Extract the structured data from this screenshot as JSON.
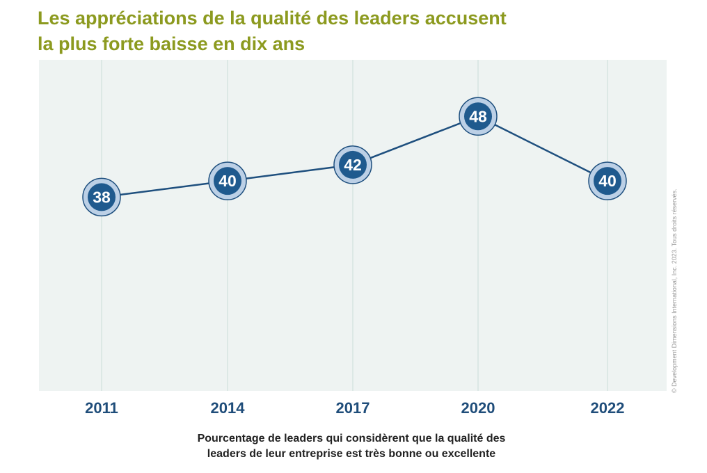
{
  "title": {
    "line1": "Les appréciations de la qualité des leaders accusent",
    "line2": "la plus forte baisse en dix ans"
  },
  "caption": {
    "line1": "Pourcentage de leaders qui considèrent que la qualité des",
    "line2": "leaders de leur entreprise est très bonne ou excellente"
  },
  "copyright": "© Development Dimensions International, Inc. 2023. Tous droits réservés.",
  "chart_data": {
    "type": "line",
    "x": [
      "2011",
      "2014",
      "2017",
      "2020",
      "2022"
    ],
    "series": [
      {
        "values": [
          38,
          40,
          42,
          48,
          40
        ]
      }
    ],
    "ylim": [
      14,
      55
    ],
    "grid": "vertical",
    "colors": {
      "plot_background": "#eef3f2",
      "grid": "#c9dcd8",
      "line": "#1e4f7e",
      "marker_fill": "#1f5a8e",
      "marker_ring": "#bcd0e6",
      "tick_label": "#1f4d7a",
      "title": "#8c9a1f"
    }
  }
}
